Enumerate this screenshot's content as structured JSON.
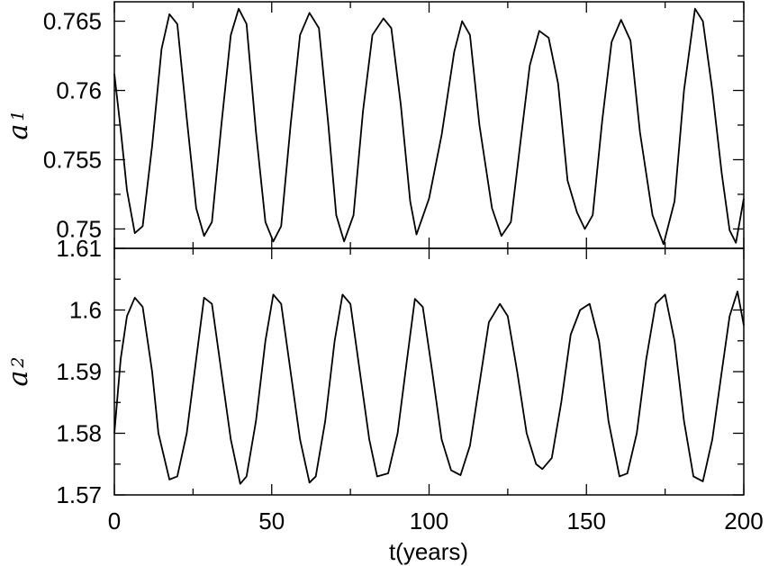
{
  "chart_data": [
    {
      "type": "line",
      "panel": "top",
      "ylabel": "a",
      "ylabel_subscript": "1",
      "xlabel": "",
      "xlim": [
        0,
        200
      ],
      "ylim": [
        0.7486,
        0.7664
      ],
      "yticks": [
        0.75,
        0.755,
        0.76,
        0.765
      ],
      "ytick_labels": [
        "0.75",
        "0.755",
        "0.76",
        "0.765"
      ],
      "xticks": [
        0,
        50,
        100,
        150,
        200
      ],
      "xtick_labels": [],
      "series": [
        {
          "x": [
            0,
            2,
            4,
            6.5,
            9,
            12,
            15,
            17.5,
            20,
            23,
            26,
            28.5,
            31,
            34,
            37,
            39.5,
            42,
            45,
            48,
            50.5,
            53,
            56,
            59,
            62,
            65,
            68,
            70.5,
            73,
            76,
            79,
            82,
            85.5,
            88,
            91,
            94,
            96,
            100,
            104,
            108,
            110.5,
            113,
            116,
            120,
            123,
            126,
            129,
            132,
            135,
            138,
            141,
            144,
            147,
            149.5,
            152,
            155,
            158,
            161,
            164,
            167,
            171,
            174.5,
            178,
            181,
            184.5,
            187,
            190,
            193,
            195.5,
            197.5,
            200
          ],
          "y": [
            0.7612,
            0.7572,
            0.7528,
            0.7497,
            0.7502,
            0.756,
            0.763,
            0.7655,
            0.7648,
            0.758,
            0.7515,
            0.7495,
            0.7505,
            0.7575,
            0.764,
            0.7659,
            0.7648,
            0.757,
            0.7505,
            0.7491,
            0.7502,
            0.7575,
            0.764,
            0.7656,
            0.7645,
            0.7575,
            0.751,
            0.7491,
            0.751,
            0.7585,
            0.764,
            0.7652,
            0.7645,
            0.759,
            0.752,
            0.7496,
            0.7522,
            0.7568,
            0.7628,
            0.765,
            0.764,
            0.7575,
            0.7515,
            0.7495,
            0.7505,
            0.7562,
            0.7618,
            0.7643,
            0.7638,
            0.7605,
            0.7535,
            0.7512,
            0.75,
            0.751,
            0.7578,
            0.7635,
            0.7651,
            0.7636,
            0.757,
            0.751,
            0.7489,
            0.752,
            0.76,
            0.7659,
            0.765,
            0.76,
            0.754,
            0.7499,
            0.749,
            0.7522
          ]
        }
      ]
    },
    {
      "type": "line",
      "panel": "bottom",
      "ylabel": "a",
      "ylabel_subscript": "2",
      "xlabel": "t(years)",
      "xlim": [
        0,
        200
      ],
      "ylim": [
        1.57,
        1.61
      ],
      "yticks": [
        1.57,
        1.58,
        1.59,
        1.6,
        1.61
      ],
      "ytick_labels": [
        "1.57",
        "1.58",
        "1.59",
        "1.6",
        "1.61"
      ],
      "xticks": [
        0,
        50,
        100,
        150,
        200
      ],
      "xtick_labels": [
        "0",
        "50",
        "100",
        "150",
        "200"
      ],
      "series": [
        {
          "x": [
            0,
            2,
            4,
            6.5,
            9,
            12,
            14,
            17.5,
            20,
            23,
            26,
            28.5,
            31,
            34,
            37,
            40,
            42,
            45,
            48,
            50.5,
            53,
            56,
            59,
            62,
            64,
            67,
            70,
            72.5,
            75,
            78,
            81,
            83.5,
            87,
            90,
            93,
            95.5,
            98,
            101,
            104,
            107,
            110,
            113,
            116,
            119,
            122.5,
            125,
            128,
            131,
            134,
            136,
            139,
            142,
            145,
            148,
            151,
            154,
            157,
            160.5,
            163,
            166,
            169,
            172,
            175,
            178,
            181,
            184,
            187,
            190,
            193,
            195.5,
            198,
            200
          ],
          "y": [
            1.58,
            1.592,
            1.599,
            1.602,
            1.6005,
            1.59,
            1.58,
            1.5725,
            1.573,
            1.58,
            1.592,
            1.602,
            1.601,
            1.59,
            1.579,
            1.5718,
            1.573,
            1.582,
            1.595,
            1.6025,
            1.601,
            1.59,
            1.579,
            1.572,
            1.573,
            1.582,
            1.595,
            1.6025,
            1.601,
            1.59,
            1.579,
            1.573,
            1.5735,
            1.58,
            1.592,
            1.6018,
            1.6005,
            1.59,
            1.579,
            1.574,
            1.5732,
            1.578,
            1.588,
            1.598,
            1.601,
            1.599,
            1.59,
            1.58,
            1.575,
            1.5742,
            1.576,
            1.585,
            1.596,
            1.6,
            1.601,
            1.595,
            1.582,
            1.573,
            1.5735,
            1.58,
            1.592,
            1.601,
            1.6025,
            1.595,
            1.582,
            1.573,
            1.5722,
            1.579,
            1.59,
            1.599,
            1.603,
            1.5975
          ]
        }
      ]
    }
  ]
}
